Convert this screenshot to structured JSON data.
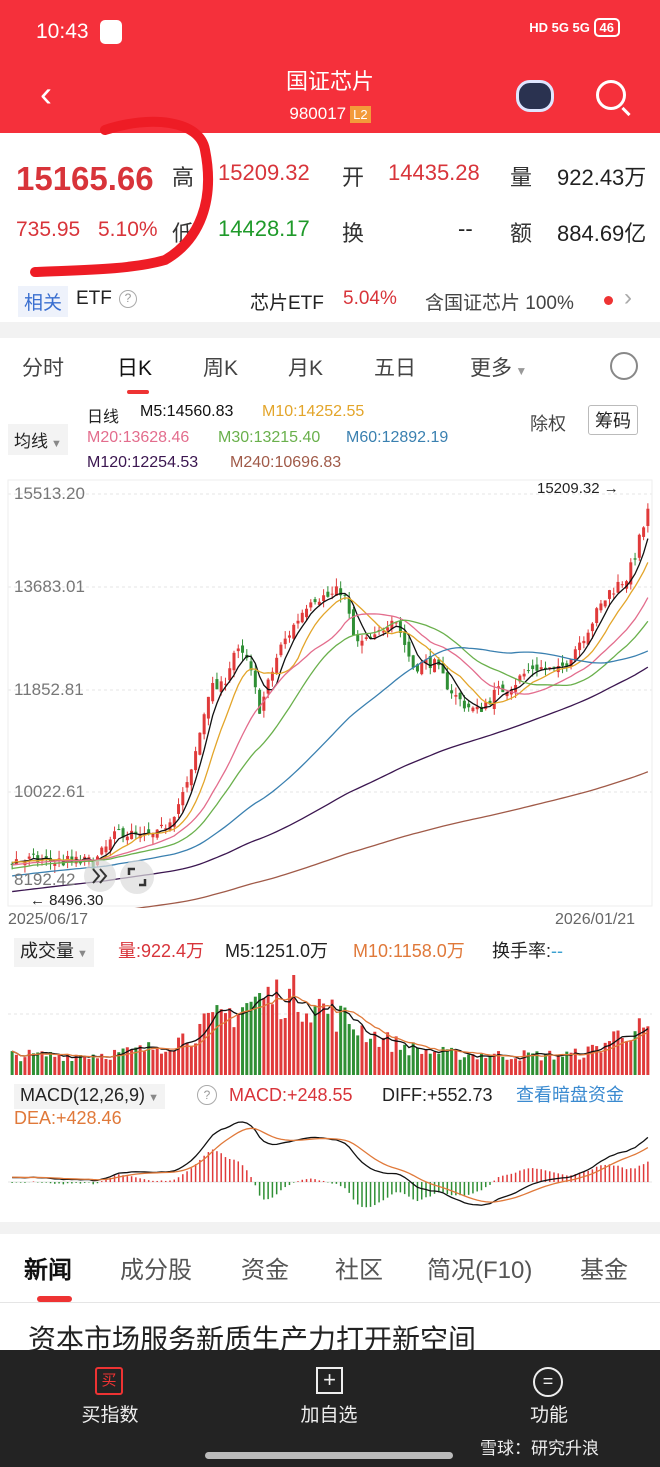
{
  "status": {
    "time": "10:43",
    "signal": "HD 5G 5G",
    "battery": "46"
  },
  "header": {
    "title": "国证芯片",
    "code": "980017",
    "badge": "L2"
  },
  "quote": {
    "price": "15165.66",
    "change": "735.95",
    "pct": "5.10%",
    "high_label": "高",
    "high": "15209.32",
    "open_label": "开",
    "open": "14435.28",
    "vol_label": "量",
    "vol": "922.43万",
    "low_label": "低",
    "low": "14428.17",
    "turn_label": "换",
    "turn": "--",
    "amt_label": "额",
    "amt": "884.69亿"
  },
  "etf": {
    "tag": "相关",
    "label": "ETF",
    "help": "?",
    "name": "芯片ETF",
    "pct": "5.04%",
    "contains": "含国证芯片 100%"
  },
  "tabs": [
    "分时",
    "日K",
    "周K",
    "月K",
    "五日",
    "更多"
  ],
  "ma": {
    "selector": "均线",
    "type": "日线",
    "m5": "M5:14560.83",
    "m10": "M10:14252.55",
    "m20": "M20:13628.46",
    "m30": "M30:13215.40",
    "m60": "M60:12892.19",
    "m120": "M120:12254.53",
    "m240": "M240:10696.83",
    "chuquan": "除权",
    "chouma": "筹码"
  },
  "colors": {
    "up": "#e03a3a",
    "down": "#2f8f35",
    "m5": "#111111",
    "m10": "#e3a52a",
    "m20": "#e36d8d",
    "m30": "#6ab04c",
    "m60": "#3a80b0",
    "m120": "#3b1650",
    "m240": "#a05a48",
    "brand": "#f5303b"
  },
  "chart": {
    "y_ticks": [
      "15513.20",
      "13683.01",
      "11852.81",
      "10022.61",
      "8192.42"
    ],
    "max_label": "15209.32",
    "min_label": "8496.30",
    "start_date": "2025/06/17",
    "end_date": "2026/01/21"
  },
  "volume": {
    "selector": "成交量",
    "vol": "量:922.4万",
    "m5": "M5:1251.0万",
    "m10": "M10:1158.0万",
    "turn": "换手率:",
    "turn_val": "--"
  },
  "macd": {
    "selector": "MACD(12,26,9)",
    "macd": "MACD:+248.55",
    "diff": "DIFF:+552.73",
    "link": "查看暗盘资金",
    "dea": "DEA:+428.46"
  },
  "bottom_tabs": [
    "新闻",
    "成分股",
    "资金",
    "社区",
    "简况(F10)",
    "基金"
  ],
  "news_headline": "资本市场服务新质生产力打开新空间",
  "bottom_bar": {
    "buy": "买指数",
    "buy_icon": "买",
    "add": "加自选",
    "func": "功能"
  },
  "watermark": "雪球：研究升浪"
}
